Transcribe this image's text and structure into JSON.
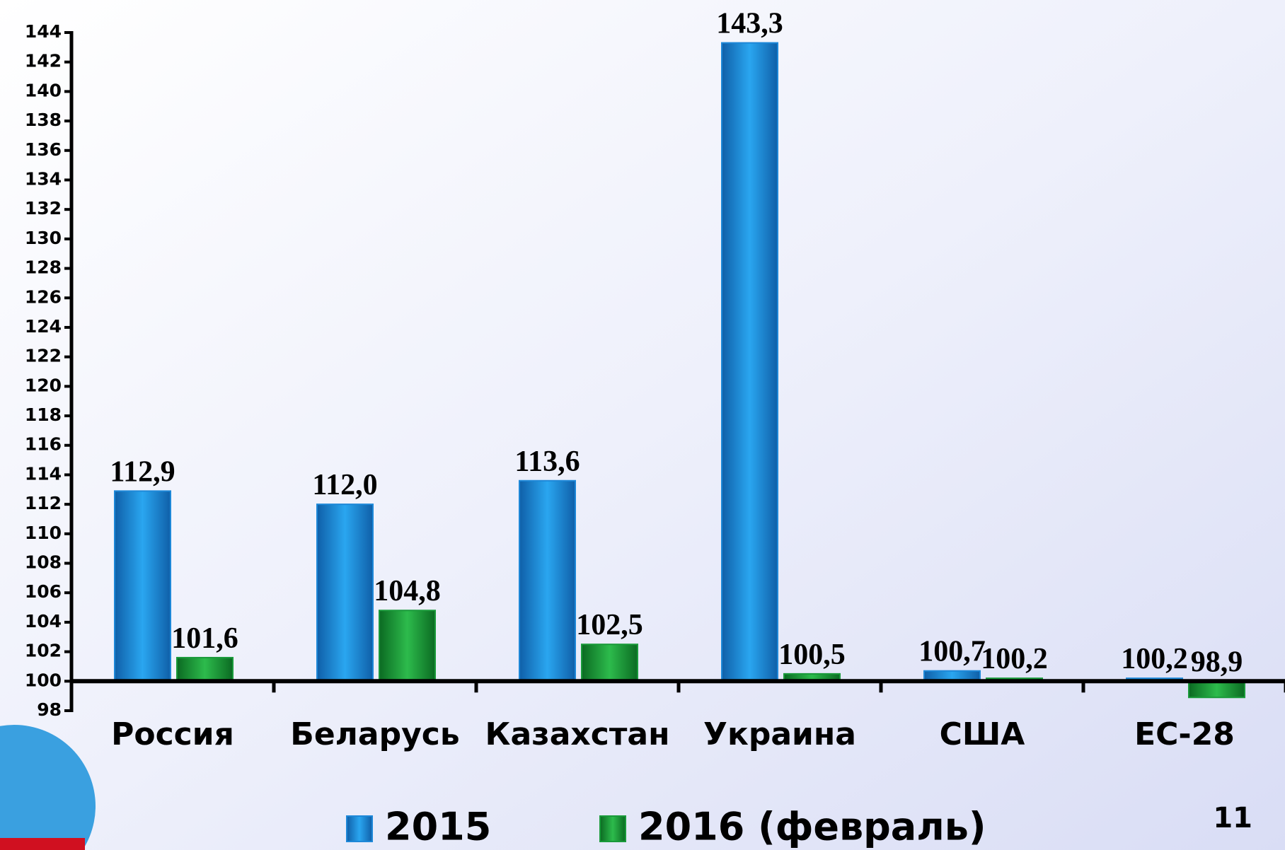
{
  "chart_data": {
    "type": "bar",
    "categories": [
      "Россия",
      "Беларусь",
      "Казахстан",
      "Украина",
      "США",
      "ЕС-28"
    ],
    "series": [
      {
        "name": "2015",
        "color": "#1e88d8",
        "values": [
          112.9,
          112.0,
          113.6,
          143.3,
          100.7,
          100.2
        ],
        "value_labels": [
          "112,9",
          "112,0",
          "113,6",
          "143,3",
          "100,7",
          "100,2"
        ]
      },
      {
        "name": "2016 (февраль)",
        "color": "#1a9a3a",
        "values": [
          101.6,
          104.8,
          102.5,
          100.5,
          100.2,
          98.9
        ],
        "value_labels": [
          "101,6",
          "104,8",
          "102,5",
          "100,5",
          "100,2",
          "98,9"
        ]
      }
    ],
    "ylim": [
      98,
      144
    ],
    "yticks": [
      98,
      100,
      102,
      104,
      106,
      108,
      110,
      112,
      114,
      116,
      118,
      120,
      122,
      124,
      126,
      128,
      130,
      132,
      134,
      136,
      138,
      140,
      142,
      144
    ],
    "x_axis_at": 100,
    "legend": "bottom"
  },
  "page_number": "11"
}
